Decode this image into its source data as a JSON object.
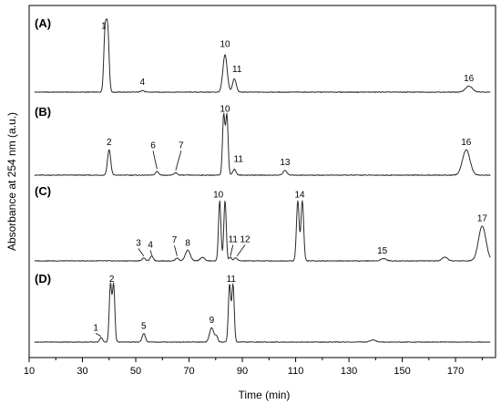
{
  "chart_data": {
    "type": "line",
    "xlabel": "Time (min)",
    "ylabel": "Absorbance at 254 nm (a.u.)",
    "xlim": [
      10,
      185
    ],
    "xticks": [
      10,
      30,
      50,
      70,
      90,
      110,
      130,
      150,
      170
    ],
    "panels": [
      {
        "label": "(A)",
        "peaks": [
          {
            "id": "1",
            "x": 38.5,
            "h": 1.0,
            "w": 0.5
          },
          {
            "id": "1b",
            "x": 39.5,
            "h": 1.0,
            "w": 0.5
          },
          {
            "id": "4",
            "x": 52.5,
            "h": 0.03,
            "w": 0.6
          },
          {
            "id": "10",
            "x": 83.5,
            "h": 0.62,
            "w": 0.8
          },
          {
            "id": "11",
            "x": 87.0,
            "h": 0.22,
            "w": 0.7
          },
          {
            "id": "16",
            "x": 175.0,
            "h": 0.1,
            "w": 1.3
          }
        ],
        "labels": [
          {
            "text": "1",
            "x": 38.0,
            "y": 1.05
          },
          {
            "text": "4",
            "x": 52.5,
            "y": 0.12
          },
          {
            "text": "10",
            "x": 83.5,
            "y": 0.75
          },
          {
            "text": "11",
            "x": 88.0,
            "y": 0.33
          },
          {
            "text": "16",
            "x": 175.0,
            "y": 0.18
          }
        ]
      },
      {
        "label": "(B)",
        "peaks": [
          {
            "id": "2",
            "x": 40.0,
            "h": 0.42,
            "w": 0.6
          },
          {
            "id": "6",
            "x": 58.0,
            "h": 0.06,
            "w": 0.6
          },
          {
            "id": "7",
            "x": 65.0,
            "h": 0.04,
            "w": 0.6
          },
          {
            "id": "10",
            "x": 83.0,
            "h": 1.0,
            "w": 0.45
          },
          {
            "id": "10b",
            "x": 84.2,
            "h": 1.0,
            "w": 0.45
          },
          {
            "id": "11",
            "x": 87.0,
            "h": 0.1,
            "w": 0.6
          },
          {
            "id": "13",
            "x": 106.0,
            "h": 0.08,
            "w": 0.7
          },
          {
            "id": "16",
            "x": 174.0,
            "h": 0.42,
            "w": 1.4
          }
        ],
        "labels": [
          {
            "text": "2",
            "x": 40.0,
            "y": 0.5
          },
          {
            "text": "6",
            "x": 56.5,
            "y": 0.45,
            "leader": [
              58.0,
              0.1
            ]
          },
          {
            "text": "7",
            "x": 67.0,
            "y": 0.45,
            "leader": [
              65.0,
              0.08
            ]
          },
          {
            "text": "10",
            "x": 83.5,
            "y": 1.05
          },
          {
            "text": "11",
            "x": 88.5,
            "y": 0.22
          },
          {
            "text": "13",
            "x": 106.0,
            "y": 0.17
          },
          {
            "text": "16",
            "x": 174.0,
            "y": 0.5
          }
        ]
      },
      {
        "label": "(C)",
        "peaks": [
          {
            "id": "3",
            "x": 53.0,
            "h": 0.05,
            "w": 0.6
          },
          {
            "id": "4",
            "x": 56.0,
            "h": 0.08,
            "w": 0.6
          },
          {
            "id": "7",
            "x": 65.5,
            "h": 0.05,
            "w": 0.6
          },
          {
            "id": "8",
            "x": 69.5,
            "h": 0.18,
            "w": 0.9
          },
          {
            "id": "a",
            "x": 75.0,
            "h": 0.06,
            "w": 0.8
          },
          {
            "id": "10",
            "x": 81.5,
            "h": 1.0,
            "w": 0.45
          },
          {
            "id": "10b",
            "x": 83.5,
            "h": 1.0,
            "w": 0.45
          },
          {
            "id": "11",
            "x": 85.5,
            "h": 0.06,
            "w": 0.5
          },
          {
            "id": "12",
            "x": 87.5,
            "h": 0.05,
            "w": 0.6
          },
          {
            "id": "14",
            "x": 110.8,
            "h": 1.0,
            "w": 0.5
          },
          {
            "id": "14b",
            "x": 112.5,
            "h": 1.0,
            "w": 0.5
          },
          {
            "id": "15",
            "x": 143.0,
            "h": 0.04,
            "w": 1.0
          },
          {
            "id": "b",
            "x": 166.0,
            "h": 0.06,
            "w": 1.0
          },
          {
            "id": "17",
            "x": 180.0,
            "h": 0.58,
            "w": 1.4
          }
        ],
        "labels": [
          {
            "text": "3",
            "x": 51.0,
            "y": 0.25,
            "leader": [
              53.0,
              0.08
            ]
          },
          {
            "text": "4",
            "x": 55.5,
            "y": 0.22,
            "leader": [
              56.0,
              0.1
            ]
          },
          {
            "text": "7",
            "x": 64.5,
            "y": 0.3,
            "leader": [
              65.5,
              0.08
            ]
          },
          {
            "text": "8",
            "x": 69.5,
            "y": 0.25
          },
          {
            "text": "10",
            "x": 81.0,
            "y": 1.05
          },
          {
            "text": "11",
            "x": 86.5,
            "y": 0.31,
            "leader": [
              85.5,
              0.08
            ]
          },
          {
            "text": "12",
            "x": 91.0,
            "y": 0.31,
            "leader": [
              88.0,
              0.08
            ]
          },
          {
            "text": "14",
            "x": 111.5,
            "y": 1.05
          },
          {
            "text": "15",
            "x": 142.5,
            "y": 0.12
          },
          {
            "text": "17",
            "x": 180.0,
            "y": 0.66
          }
        ]
      },
      {
        "label": "(D)",
        "peaks": [
          {
            "id": "1",
            "x": 37.0,
            "h": 0.08,
            "w": 0.5
          },
          {
            "id": "2",
            "x": 40.5,
            "h": 1.0,
            "w": 0.45
          },
          {
            "id": "2b",
            "x": 41.7,
            "h": 1.0,
            "w": 0.45
          },
          {
            "id": "5",
            "x": 53.0,
            "h": 0.15,
            "w": 0.6
          },
          {
            "id": "9",
            "x": 78.5,
            "h": 0.25,
            "w": 0.8
          },
          {
            "id": "9b",
            "x": 80.3,
            "h": 0.1,
            "w": 0.5
          },
          {
            "id": "11",
            "x": 85.2,
            "h": 1.0,
            "w": 0.45
          },
          {
            "id": "11b",
            "x": 86.5,
            "h": 1.0,
            "w": 0.45
          },
          {
            "id": "c",
            "x": 139.0,
            "h": 0.04,
            "w": 1.0
          }
        ],
        "labels": [
          {
            "text": "1",
            "x": 35.0,
            "y": 0.2,
            "leader": [
              37.0,
              0.1
            ]
          },
          {
            "text": "2",
            "x": 41.0,
            "y": 1.05
          },
          {
            "text": "5",
            "x": 53.0,
            "y": 0.23
          },
          {
            "text": "9",
            "x": 78.5,
            "y": 0.33
          },
          {
            "text": "11",
            "x": 85.8,
            "y": 1.05
          }
        ]
      }
    ]
  }
}
